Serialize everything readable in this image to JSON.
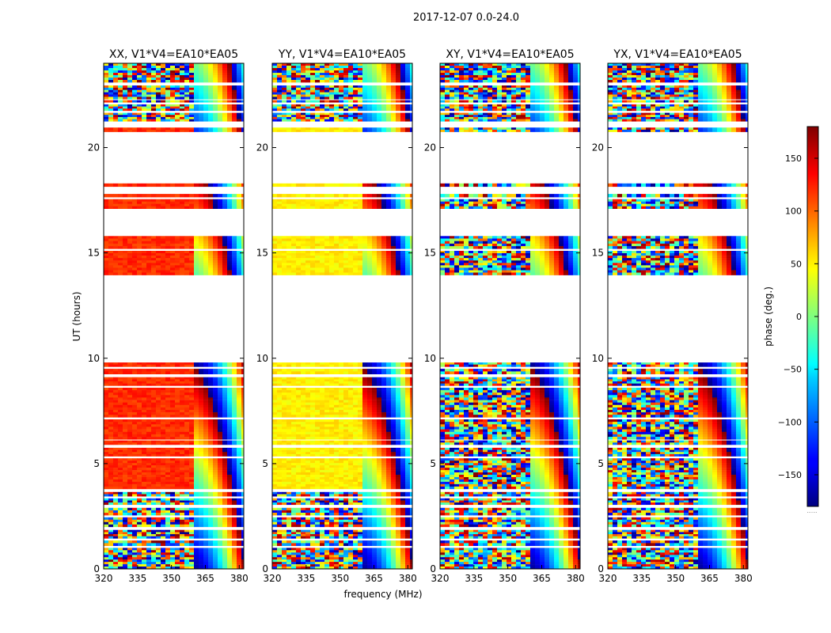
{
  "figure": {
    "suptitle": "2017-12-07 0.0-24.0",
    "xlabel": "frequency (MHz)",
    "ylabel": "UT (hours)"
  },
  "chart_data": {
    "type": "heatmap",
    "title": "2017-12-07 0.0-24.0",
    "xlabel": "frequency (MHz)",
    "ylabel": "UT (hours)",
    "xlim": [
      320,
      382
    ],
    "ylim": [
      0,
      24
    ],
    "xticks": [
      320,
      335,
      350,
      365,
      380
    ],
    "yticks": [
      0,
      5,
      10,
      15,
      20
    ],
    "colormap": "jet",
    "colorbar": {
      "label": "phase (deg.)",
      "range": [
        -180,
        180
      ],
      "ticks": [
        150,
        100,
        50,
        0,
        -50,
        -100,
        -150
      ],
      "tick_labels": [
        "150",
        "100",
        "50",
        "0",
        "−50",
        "−100",
        "−150"
      ],
      "footer": "......"
    },
    "panels": [
      {
        "title": "XX, V1*V4=EA10*EA05",
        "pol": "XX",
        "base_phase": 120
      },
      {
        "title": "YY, V1*V4=EA10*EA05",
        "pol": "YY",
        "base_phase": 50
      },
      {
        "title": "XY, V1*V4=EA10*EA05",
        "pol": "XY",
        "base_phase": null
      },
      {
        "title": "YX, V1*V4=EA10*EA05",
        "pol": "YX",
        "base_phase": null
      }
    ],
    "data_bands_ut": [
      [
        0.0,
        1.0
      ],
      [
        1.1,
        1.35
      ],
      [
        1.45,
        1.85
      ],
      [
        2.0,
        2.45
      ],
      [
        2.55,
        2.9
      ],
      [
        3.05,
        3.35
      ],
      [
        3.45,
        3.65
      ],
      [
        3.8,
        5.25
      ],
      [
        5.35,
        5.75
      ],
      [
        5.9,
        6.1
      ],
      [
        6.15,
        7.1
      ],
      [
        7.2,
        8.6
      ],
      [
        8.7,
        9.1
      ],
      [
        9.25,
        9.5
      ],
      [
        9.6,
        9.8
      ],
      [
        13.95,
        15.1
      ],
      [
        15.2,
        15.8
      ],
      [
        17.1,
        17.55
      ],
      [
        17.65,
        17.8
      ],
      [
        18.15,
        18.3
      ],
      [
        20.75,
        20.95
      ],
      [
        21.25,
        21.65
      ],
      [
        21.75,
        22.05
      ],
      [
        22.15,
        22.25
      ],
      [
        22.3,
        22.95
      ],
      [
        23.1,
        24.0
      ]
    ]
  }
}
